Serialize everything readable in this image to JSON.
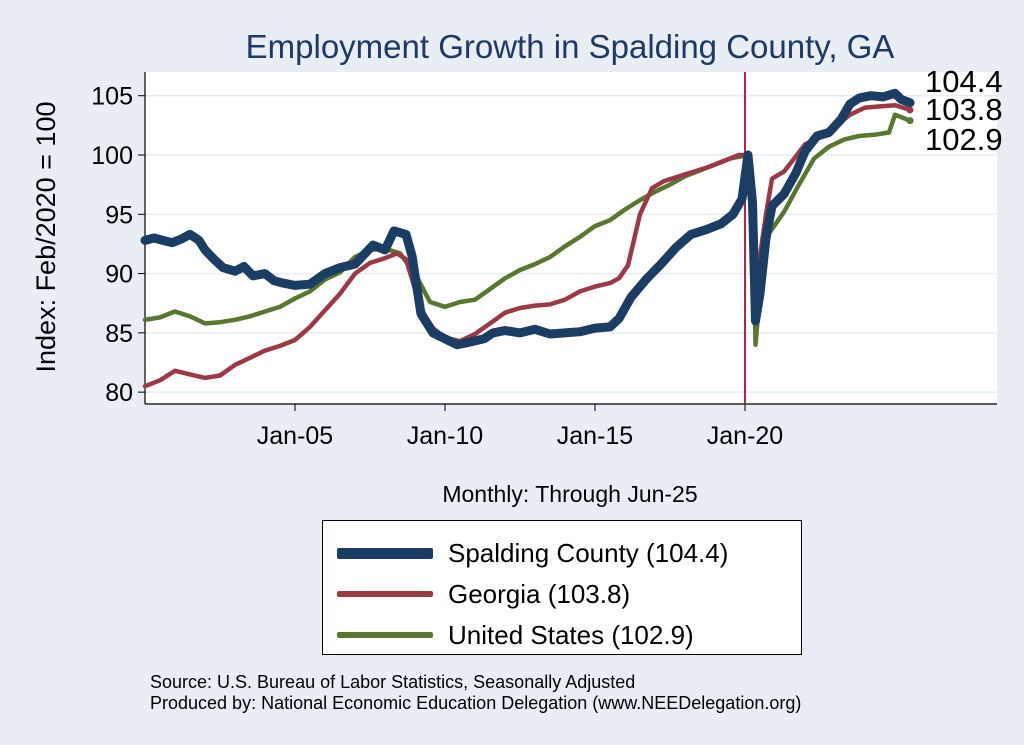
{
  "chart_data": {
    "type": "line",
    "title": "Employment Growth in Spalding  County, GA",
    "ylabel": "Index: Feb/2020 = 100",
    "xlabel": "Monthly: Through Jun-25",
    "ylim": [
      79,
      107
    ],
    "xlim": [
      2000.0,
      2028.4
    ],
    "yticks": [
      80,
      85,
      90,
      95,
      100,
      105
    ],
    "xticks": [
      {
        "x": 2005.0,
        "label": "Jan-05"
      },
      {
        "x": 2010.0,
        "label": "Jan-10"
      },
      {
        "x": 2015.0,
        "label": "Jan-15"
      },
      {
        "x": 2020.0,
        "label": "Jan-20"
      }
    ],
    "reference_line": {
      "x": 2020.0,
      "color": "#b5224a"
    },
    "end_labels": [
      "104.4",
      "103.8",
      "102.9"
    ],
    "series": [
      {
        "name": "Spalding  County",
        "legend": "Spalding  County (104.4)",
        "color": "#1c3d63",
        "end_value": 104.4,
        "points": [
          [
            2000.0,
            92.8
          ],
          [
            2000.3,
            93.0
          ],
          [
            2000.6,
            92.8
          ],
          [
            2000.9,
            92.6
          ],
          [
            2001.2,
            92.9
          ],
          [
            2001.5,
            93.3
          ],
          [
            2001.8,
            92.8
          ],
          [
            2002.0,
            92.0
          ],
          [
            2002.3,
            91.2
          ],
          [
            2002.6,
            90.5
          ],
          [
            2003.0,
            90.2
          ],
          [
            2003.3,
            90.6
          ],
          [
            2003.6,
            89.8
          ],
          [
            2004.0,
            90.0
          ],
          [
            2004.3,
            89.4
          ],
          [
            2004.6,
            89.2
          ],
          [
            2005.0,
            89.0
          ],
          [
            2005.5,
            89.1
          ],
          [
            2006.0,
            90.0
          ],
          [
            2006.5,
            90.5
          ],
          [
            2007.0,
            90.8
          ],
          [
            2007.3,
            91.6
          ],
          [
            2007.6,
            92.4
          ],
          [
            2008.0,
            92.0
          ],
          [
            2008.3,
            93.6
          ],
          [
            2008.7,
            93.3
          ],
          [
            2008.9,
            91.5
          ],
          [
            2009.2,
            86.6
          ],
          [
            2009.6,
            85.0
          ],
          [
            2010.0,
            84.5
          ],
          [
            2010.4,
            84.0
          ],
          [
            2010.8,
            84.2
          ],
          [
            2011.3,
            84.5
          ],
          [
            2011.6,
            85.0
          ],
          [
            2012.0,
            85.2
          ],
          [
            2012.5,
            85.0
          ],
          [
            2013.0,
            85.3
          ],
          [
            2013.5,
            84.9
          ],
          [
            2014.0,
            85.0
          ],
          [
            2014.5,
            85.1
          ],
          [
            2015.0,
            85.4
          ],
          [
            2015.5,
            85.5
          ],
          [
            2015.8,
            86.2
          ],
          [
            2016.2,
            88.0
          ],
          [
            2016.7,
            89.5
          ],
          [
            2017.2,
            90.8
          ],
          [
            2017.7,
            92.2
          ],
          [
            2018.2,
            93.3
          ],
          [
            2018.7,
            93.7
          ],
          [
            2019.2,
            94.2
          ],
          [
            2019.6,
            95.0
          ],
          [
            2019.9,
            96.3
          ],
          [
            2020.1,
            100.0
          ],
          [
            2020.25,
            96.0
          ],
          [
            2020.35,
            86.0
          ],
          [
            2020.5,
            88.3
          ],
          [
            2020.7,
            93.0
          ],
          [
            2020.9,
            95.7
          ],
          [
            2021.3,
            96.7
          ],
          [
            2021.7,
            98.5
          ],
          [
            2022.0,
            100.3
          ],
          [
            2022.4,
            101.6
          ],
          [
            2022.8,
            101.9
          ],
          [
            2023.2,
            103.0
          ],
          [
            2023.5,
            104.3
          ],
          [
            2023.8,
            104.8
          ],
          [
            2024.2,
            105.0
          ],
          [
            2024.6,
            104.9
          ],
          [
            2025.0,
            105.2
          ],
          [
            2025.2,
            104.7
          ],
          [
            2025.5,
            104.4
          ]
        ]
      },
      {
        "name": "Georgia",
        "legend": "Georgia (103.8)",
        "color": "#9b3a46",
        "end_value": 103.8,
        "points": [
          [
            2000.0,
            80.5
          ],
          [
            2000.5,
            81.0
          ],
          [
            2001.0,
            81.8
          ],
          [
            2001.5,
            81.5
          ],
          [
            2002.0,
            81.2
          ],
          [
            2002.5,
            81.4
          ],
          [
            2003.0,
            82.3
          ],
          [
            2003.5,
            82.9
          ],
          [
            2004.0,
            83.5
          ],
          [
            2004.5,
            83.9
          ],
          [
            2005.0,
            84.4
          ],
          [
            2005.5,
            85.5
          ],
          [
            2006.0,
            86.9
          ],
          [
            2006.5,
            88.3
          ],
          [
            2007.0,
            90.0
          ],
          [
            2007.5,
            90.9
          ],
          [
            2008.0,
            91.3
          ],
          [
            2008.4,
            91.7
          ],
          [
            2008.7,
            91.2
          ],
          [
            2009.0,
            88.7
          ],
          [
            2009.3,
            86.6
          ],
          [
            2009.6,
            85.4
          ],
          [
            2010.0,
            84.6
          ],
          [
            2010.5,
            84.3
          ],
          [
            2011.0,
            84.9
          ],
          [
            2011.5,
            85.8
          ],
          [
            2012.0,
            86.7
          ],
          [
            2012.5,
            87.1
          ],
          [
            2013.0,
            87.3
          ],
          [
            2013.5,
            87.4
          ],
          [
            2014.0,
            87.8
          ],
          [
            2014.5,
            88.5
          ],
          [
            2015.0,
            88.9
          ],
          [
            2015.5,
            89.2
          ],
          [
            2015.8,
            89.6
          ],
          [
            2016.1,
            90.7
          ],
          [
            2016.5,
            95.0
          ],
          [
            2016.9,
            97.2
          ],
          [
            2017.3,
            97.8
          ],
          [
            2017.8,
            98.2
          ],
          [
            2018.3,
            98.6
          ],
          [
            2018.8,
            99.0
          ],
          [
            2019.3,
            99.5
          ],
          [
            2019.8,
            100.0
          ],
          [
            2020.15,
            100.0
          ],
          [
            2020.28,
            96.0
          ],
          [
            2020.35,
            86.0
          ],
          [
            2020.5,
            91.5
          ],
          [
            2020.7,
            95.0
          ],
          [
            2020.9,
            98.0
          ],
          [
            2021.3,
            98.6
          ],
          [
            2021.7,
            99.9
          ],
          [
            2022.0,
            100.9
          ],
          [
            2022.5,
            101.5
          ],
          [
            2023.0,
            102.4
          ],
          [
            2023.5,
            103.4
          ],
          [
            2024.0,
            104.0
          ],
          [
            2024.5,
            104.1
          ],
          [
            2025.0,
            104.2
          ],
          [
            2025.5,
            103.8
          ]
        ]
      },
      {
        "name": "United States",
        "legend": "United States (102.9)",
        "color": "#59772f",
        "end_value": 102.9,
        "points": [
          [
            2000.0,
            86.1
          ],
          [
            2000.5,
            86.3
          ],
          [
            2001.0,
            86.8
          ],
          [
            2001.5,
            86.4
          ],
          [
            2002.0,
            85.8
          ],
          [
            2002.5,
            85.9
          ],
          [
            2003.0,
            86.1
          ],
          [
            2003.5,
            86.4
          ],
          [
            2004.0,
            86.8
          ],
          [
            2004.5,
            87.2
          ],
          [
            2005.0,
            87.9
          ],
          [
            2005.5,
            88.5
          ],
          [
            2006.0,
            89.5
          ],
          [
            2006.5,
            90.1
          ],
          [
            2007.0,
            91.4
          ],
          [
            2007.5,
            92.0
          ],
          [
            2008.0,
            92.1
          ],
          [
            2008.5,
            91.7
          ],
          [
            2009.0,
            90.0
          ],
          [
            2009.5,
            87.6
          ],
          [
            2010.0,
            87.2
          ],
          [
            2010.5,
            87.6
          ],
          [
            2011.0,
            87.8
          ],
          [
            2011.5,
            88.7
          ],
          [
            2012.0,
            89.6
          ],
          [
            2012.5,
            90.3
          ],
          [
            2013.0,
            90.8
          ],
          [
            2013.5,
            91.4
          ],
          [
            2014.0,
            92.3
          ],
          [
            2014.5,
            93.1
          ],
          [
            2015.0,
            94.0
          ],
          [
            2015.5,
            94.5
          ],
          [
            2016.0,
            95.4
          ],
          [
            2016.5,
            96.2
          ],
          [
            2017.0,
            96.9
          ],
          [
            2017.5,
            97.5
          ],
          [
            2018.0,
            98.2
          ],
          [
            2018.5,
            98.7
          ],
          [
            2019.0,
            99.2
          ],
          [
            2019.5,
            99.7
          ],
          [
            2020.1,
            100.0
          ],
          [
            2020.25,
            97.0
          ],
          [
            2020.35,
            84.0
          ],
          [
            2020.5,
            88.5
          ],
          [
            2020.8,
            93.4
          ],
          [
            2021.3,
            95.2
          ],
          [
            2021.8,
            97.5
          ],
          [
            2022.3,
            99.7
          ],
          [
            2022.8,
            100.7
          ],
          [
            2023.3,
            101.3
          ],
          [
            2023.8,
            101.6
          ],
          [
            2024.3,
            101.7
          ],
          [
            2024.8,
            101.9
          ],
          [
            2025.0,
            103.4
          ],
          [
            2025.5,
            102.9
          ]
        ]
      }
    ]
  },
  "footer": {
    "source_line": "Source: U.S. Bureau of Labor Statistics, Seasonally Adjusted",
    "produced_line": "Produced by: National Economic Education Delegation (www.NEEDelegation.org)"
  }
}
